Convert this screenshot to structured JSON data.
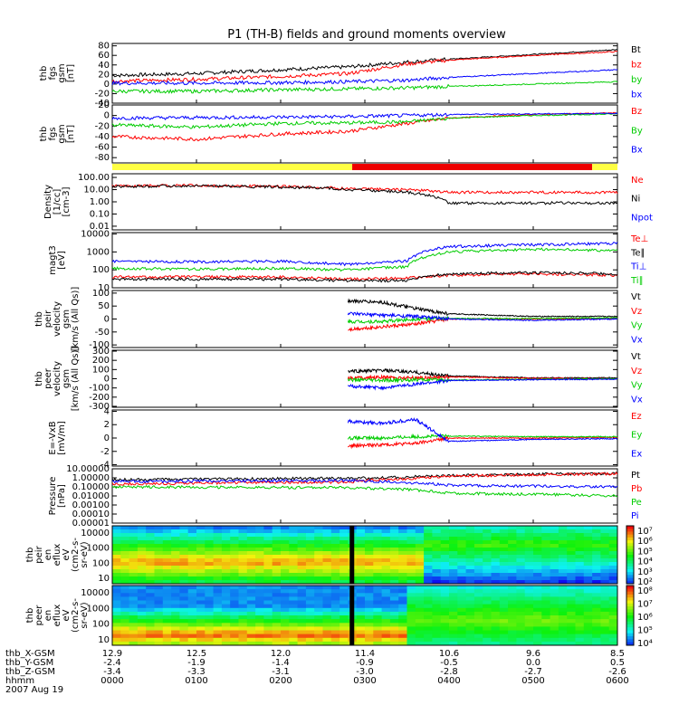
{
  "title": "P1 (TH-B) fields and ground moments overview",
  "chart_data": {
    "type": "line",
    "x_range": [
      "0000",
      "0600"
    ],
    "panels": [
      {
        "id": "fgs",
        "ylabel": [
          "thb",
          "fgs",
          "gsm",
          "[nT]"
        ],
        "yticks": [
          "80",
          "60",
          "40",
          "20",
          "0",
          "-20",
          "-40"
        ],
        "ylim": [
          -40,
          85
        ],
        "series": [
          {
            "name": "Bt",
            "color": "#000000",
            "x": [
              0,
              1,
              2,
              2.8,
              3.5,
              4,
              5,
              6
            ],
            "y": [
              18,
              22,
              30,
              36,
              46,
              52,
              62,
              72
            ]
          },
          {
            "name": "bz",
            "color": "#ff0000",
            "x": [
              0,
              1,
              2,
              2.8,
              3.5,
              4,
              5,
              6
            ],
            "y": [
              6,
              10,
              16,
              22,
              42,
              50,
              60,
              68
            ]
          },
          {
            "name": "by",
            "color": "#00cc00",
            "x": [
              0,
              1,
              2,
              2.8,
              3.5,
              4,
              5,
              6
            ],
            "y": [
              -15,
              -15,
              -12,
              -10,
              -8,
              -5,
              0,
              5
            ]
          },
          {
            "name": "bx",
            "color": "#0000ff",
            "x": [
              0,
              1,
              2,
              2.8,
              3.5,
              4,
              5,
              6
            ],
            "y": [
              2,
              2,
              3,
              5,
              8,
              14,
              22,
              30
            ]
          }
        ],
        "legend_x": 697
      },
      {
        "id": "fgs2",
        "ylabel": [
          "thb",
          "fgs",
          "gsm",
          "[nT]"
        ],
        "yticks": [
          "20",
          "0",
          "-20",
          "-40",
          "-60",
          "-80"
        ],
        "ylim": [
          -90,
          20
        ],
        "series": [
          {
            "name": "Bz",
            "color": "#ff0000",
            "x": [
              0,
              1,
              2,
              2.8,
              3.5,
              4,
              5,
              6
            ],
            "y": [
              -40,
              -45,
              -35,
              -30,
              -15,
              -5,
              2,
              5
            ]
          },
          {
            "name": "By",
            "color": "#00cc00",
            "x": [
              0,
              1,
              2,
              2.8,
              3.5,
              4,
              5,
              6
            ],
            "y": [
              -18,
              -22,
              -15,
              -14,
              -12,
              -5,
              0,
              3
            ]
          },
          {
            "name": "Bx",
            "color": "#0000ff",
            "x": [
              0,
              1,
              2,
              2.8,
              3.5,
              4,
              5,
              6
            ],
            "y": [
              -5,
              -4,
              -3,
              -2,
              0,
              2,
              3,
              4
            ]
          }
        ]
      },
      {
        "id": "density",
        "ylabel": [
          "Density",
          "[1/cc]",
          "[cm-3]"
        ],
        "yticks": [
          "100.00",
          "10.00",
          "1.00",
          "0.10",
          "0.01"
        ],
        "log": true,
        "ylim": [
          0.005,
          200
        ],
        "series": [
          {
            "name": "Ne",
            "color": "#ff0000",
            "x": [
              0,
              1,
              2,
              2.5,
              2.8,
              3.5,
              4,
              5,
              6
            ],
            "y": [
              20,
              22,
              18,
              15,
              12,
              10,
              6,
              6,
              6
            ]
          },
          {
            "name": "Ni",
            "color": "#000000",
            "x": [
              0,
              1,
              2,
              2.5,
              2.8,
              3.5,
              4,
              5,
              6
            ],
            "y": [
              18,
              20,
              16,
              14,
              10,
              6,
              0.8,
              0.8,
              0.8
            ]
          },
          {
            "name": "Npot",
            "color": "#0000ff",
            "x": [],
            "y": []
          }
        ]
      },
      {
        "id": "temp",
        "ylabel": [
          "magt3",
          "[eV]"
        ],
        "yticks": [
          "10000",
          "1000",
          "100",
          "10"
        ],
        "log": true,
        "ylim": [
          10,
          12000
        ],
        "series": [
          {
            "name": "Te⊥",
            "color": "#ff0000",
            "x": [
              0,
              1,
              2,
              2.8,
              3.5,
              4,
              5,
              6
            ],
            "y": [
              40,
              40,
              40,
              30,
              35,
              50,
              60,
              50
            ]
          },
          {
            "name": "Te∥",
            "color": "#000000",
            "x": [
              0,
              1,
              2,
              2.8,
              3.5,
              4,
              5,
              6
            ],
            "y": [
              30,
              30,
              30,
              25,
              25,
              60,
              70,
              60
            ]
          },
          {
            "name": "Ti⊥",
            "color": "#0000ff",
            "x": [
              0,
              1,
              2,
              2.8,
              3.5,
              4,
              5,
              6
            ],
            "y": [
              300,
              280,
              300,
              200,
              300,
              2000,
              2500,
              3000
            ]
          },
          {
            "name": "Ti∥",
            "color": "#00cc00",
            "x": [
              0,
              1,
              2,
              2.8,
              3.5,
              4,
              5,
              6
            ],
            "y": [
              120,
              110,
              120,
              100,
              150,
              1000,
              1400,
              1200
            ]
          }
        ]
      },
      {
        "id": "peirv",
        "ylabel": [
          "thb",
          "peir",
          "velocity",
          "gsm",
          "[km/s (All Qs)]"
        ],
        "yticks": [
          "100",
          "50",
          "0",
          "-50",
          "-100"
        ],
        "ylim": [
          -110,
          110
        ],
        "series": [
          {
            "name": "Vt",
            "color": "#000000",
            "x": [
              2.8,
              3.2,
              3.6,
              4,
              5,
              6
            ],
            "y": [
              70,
              65,
              40,
              20,
              10,
              10
            ]
          },
          {
            "name": "Vz",
            "color": "#ff0000",
            "x": [
              2.8,
              3.2,
              3.6,
              4,
              5,
              6
            ],
            "y": [
              -40,
              -30,
              -20,
              0,
              0,
              2
            ]
          },
          {
            "name": "Vy",
            "color": "#00cc00",
            "x": [
              2.8,
              3.2,
              3.6,
              4,
              5,
              6
            ],
            "y": [
              -10,
              -10,
              0,
              2,
              2,
              5
            ]
          },
          {
            "name": "Vx",
            "color": "#0000ff",
            "x": [
              2.8,
              3.2,
              3.6,
              4,
              5,
              6
            ],
            "y": [
              20,
              15,
              10,
              0,
              -5,
              0
            ]
          }
        ]
      },
      {
        "id": "peerv",
        "ylabel": [
          "thb",
          "peer",
          "velocity",
          "gsm",
          "[km/s (All Qs)]"
        ],
        "yticks": [
          "300",
          "200",
          "100",
          "0",
          "-100",
          "-200",
          "-300"
        ],
        "ylim": [
          -310,
          310
        ],
        "series": [
          {
            "name": "Vt",
            "color": "#000000",
            "x": [
              2.8,
              3.2,
              3.6,
              4,
              5,
              6
            ],
            "y": [
              80,
              90,
              70,
              30,
              10,
              10
            ]
          },
          {
            "name": "Vz",
            "color": "#ff0000",
            "x": [
              2.8,
              3.2,
              3.6,
              4,
              5,
              6
            ],
            "y": [
              10,
              15,
              10,
              20,
              5,
              0
            ]
          },
          {
            "name": "Vy",
            "color": "#00cc00",
            "x": [
              2.8,
              3.2,
              3.6,
              4,
              5,
              6
            ],
            "y": [
              -10,
              -20,
              -10,
              -15,
              -5,
              0
            ]
          },
          {
            "name": "Vx",
            "color": "#0000ff",
            "x": [
              2.8,
              3.2,
              3.6,
              4,
              5,
              6
            ],
            "y": [
              -80,
              -100,
              -60,
              -20,
              -10,
              -5
            ]
          }
        ]
      },
      {
        "id": "efield",
        "ylabel": [
          "E=-VxB",
          "[mV/m]"
        ],
        "yticks": [
          "4",
          "2",
          "0",
          "-2",
          "-4"
        ],
        "ylim": [
          -4.2,
          4.2
        ],
        "series": [
          {
            "name": "Ez",
            "color": "#ff0000",
            "x": [
              2.8,
              3.2,
              3.6,
              4,
              5,
              6
            ],
            "y": [
              -1.2,
              -1,
              -0.8,
              0,
              0,
              0.1
            ]
          },
          {
            "name": "Ey",
            "color": "#00cc00",
            "x": [
              2.8,
              3.2,
              3.6,
              4,
              5,
              6
            ],
            "y": [
              0,
              0,
              0.2,
              0.3,
              0.2,
              0.2
            ]
          },
          {
            "name": "Ex",
            "color": "#0000ff",
            "x": [
              2.8,
              3.2,
              3.6,
              4,
              5,
              6
            ],
            "y": [
              2.5,
              2.2,
              2.8,
              -0.5,
              -0.2,
              -0.1
            ]
          }
        ]
      },
      {
        "id": "pressure",
        "ylabel": [
          "Pressure",
          "[nPa]"
        ],
        "yticks": [
          "10.00000",
          "1.00000",
          "0.10000",
          "0.01000",
          "0.00100",
          "0.00010",
          "0.00001"
        ],
        "log": true,
        "ylim": [
          1e-05,
          10
        ],
        "series": [
          {
            "name": "Pt",
            "color": "#000000",
            "x": [
              0,
              2.8,
              3.5,
              4,
              5,
              6
            ],
            "y": [
              0.6,
              0.9,
              1.2,
              1.8,
              2.5,
              3
            ]
          },
          {
            "name": "Pb",
            "color": "#ff0000",
            "x": [
              0,
              2.8,
              3.5,
              4,
              5,
              6
            ],
            "y": [
              0.2,
              0.35,
              0.8,
              1.5,
              2.2,
              2.8
            ]
          },
          {
            "name": "Pe",
            "color": "#00cc00",
            "x": [
              0,
              2.8,
              3.5,
              4,
              5,
              6
            ],
            "y": [
              0.1,
              0.08,
              0.05,
              0.02,
              0.015,
              0.01
            ]
          },
          {
            "name": "Pi",
            "color": "#0000ff",
            "x": [
              0,
              2.8,
              3.5,
              4,
              5,
              6
            ],
            "y": [
              0.4,
              0.5,
              0.3,
              0.15,
              0.12,
              0.1
            ]
          }
        ]
      }
    ],
    "spectrograms": [
      {
        "id": "peir",
        "ylabel": [
          "thb",
          "peir",
          "en",
          "eflux",
          "eV",
          "(cm2-s-",
          "sr-eV)"
        ],
        "yticks": [
          "10000",
          "1000",
          "100",
          "10"
        ],
        "cbar_labels": [
          "10⁷",
          "10⁶",
          "10⁵",
          "10⁴",
          "10³",
          "10²"
        ]
      },
      {
        "id": "peer",
        "ylabel": [
          "thb",
          "peer",
          "en",
          "eflux",
          "eV",
          "(cm2-s-",
          "sr-eV)"
        ],
        "yticks": [
          "10000",
          "1000",
          "100",
          "10"
        ],
        "cbar_labels": [
          "10⁸",
          "10⁷",
          "10⁶",
          "10⁵",
          "10⁴"
        ]
      }
    ],
    "xticks_rows": [
      {
        "label": "thb_X-GSM",
        "values": [
          "12.9",
          "12.5",
          "12.0",
          "11.4",
          "10.6",
          "9.6",
          "8.5"
        ]
      },
      {
        "label": "thb_Y-GSM",
        "values": [
          "-2.4",
          "-1.9",
          "-1.4",
          "-0.9",
          "-0.5",
          "0.0",
          "0.5"
        ]
      },
      {
        "label": "thb_Z-GSM",
        "values": [
          "-3.4",
          "-3.3",
          "-3.1",
          "-3.0",
          "-2.8",
          "-2.7",
          "-2.6"
        ]
      },
      {
        "label": "hhmm",
        "values": [
          "0000",
          "0100",
          "0200",
          "0300",
          "0400",
          "0500",
          "0600"
        ]
      }
    ],
    "date_label": "2007 Aug 19"
  }
}
